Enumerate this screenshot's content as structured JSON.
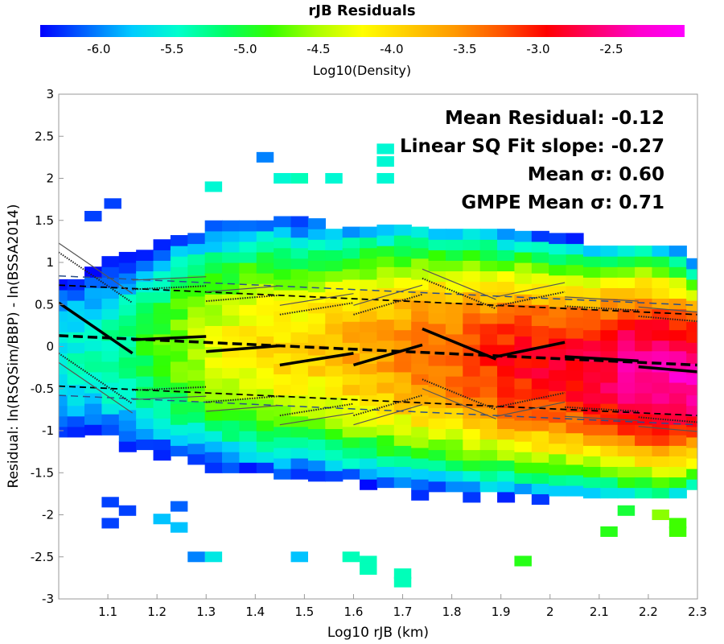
{
  "colorbar": {
    "title": "rJB Residuals",
    "label": "Log10(Density)",
    "range": [
      -6.4,
      -2.0
    ],
    "ticks": [
      "-6.0",
      "-5.5",
      "-5.0",
      "-4.5",
      "-4.0",
      "-3.5",
      "-3.0",
      "-2.5"
    ],
    "tick_values": [
      -6.0,
      -5.5,
      -5.0,
      -4.5,
      -4.0,
      -3.5,
      -3.0,
      -2.5
    ],
    "gradient_colors": [
      "#0000ff",
      "#0066ff",
      "#00ccff",
      "#00ffcc",
      "#00ff66",
      "#33ff00",
      "#aaff00",
      "#ffff00",
      "#ffcc00",
      "#ff9900",
      "#ff5500",
      "#ff0000",
      "#ff0066",
      "#ff00cc",
      "#ff00ff"
    ]
  },
  "annotations": [
    "Mean Residual: -0.12",
    "Linear SQ Fit slope: -0.27",
    "Mean σ: 0.60",
    "GMPE Mean σ: 0.71"
  ],
  "chart_data": {
    "type": "heatmap",
    "title": "rJB Residuals",
    "xlabel": "Log10 rJB (km)",
    "ylabel": "Residual: ln(RSQSim/BBP) - ln(BSSA2014)",
    "xlim": [
      1.0,
      2.3
    ],
    "ylim": [
      -3,
      3
    ],
    "xticks": [
      "1.1",
      "1.2",
      "1.3",
      "1.4",
      "1.5",
      "1.6",
      "1.7",
      "1.8",
      "1.9",
      "2",
      "2.1",
      "2.2",
      "2.3"
    ],
    "xtick_values": [
      1.1,
      1.2,
      1.3,
      1.4,
      1.5,
      1.6,
      1.7,
      1.8,
      1.9,
      2.0,
      2.1,
      2.2,
      2.3
    ],
    "yticks": [
      "3",
      "2.5",
      "2",
      "1.5",
      "1",
      "0.5",
      "0",
      "-0.5",
      "-1",
      "-1.5",
      "-2",
      "-2.5",
      "-3"
    ],
    "ytick_values": [
      3,
      2.5,
      2,
      1.5,
      1,
      0.5,
      0,
      -0.5,
      -1,
      -1.5,
      -2,
      -2.5,
      -3
    ],
    "grid": false,
    "mean_residual": -0.12,
    "linear_fit_slope": -0.27,
    "mean_sigma": 0.6,
    "gmpe_mean_sigma": 0.71,
    "fit_line": {
      "x": [
        1.0,
        2.3
      ],
      "y": [
        0.13,
        -0.22
      ]
    },
    "sigma_band_upper": {
      "x": [
        1.0,
        2.3
      ],
      "y": [
        0.73,
        0.38
      ]
    },
    "sigma_band_lower": {
      "x": [
        1.0,
        2.3
      ],
      "y": [
        -0.47,
        -0.82
      ]
    },
    "gmpe_band_upper": {
      "x": [
        1.0,
        2.3
      ],
      "y": [
        0.84,
        0.49
      ]
    },
    "gmpe_band_lower": {
      "x": [
        1.0,
        2.3
      ],
      "y": [
        -0.58,
        -0.93
      ]
    },
    "bin_segments": [
      {
        "x": [
          1.0,
          1.15
        ],
        "y": [
          0.52,
          -0.08
        ]
      },
      {
        "x": [
          1.15,
          1.3
        ],
        "y": [
          0.08,
          0.12
        ]
      },
      {
        "x": [
          1.3,
          1.45
        ],
        "y": [
          -0.06,
          0.01
        ]
      },
      {
        "x": [
          1.45,
          1.6
        ],
        "y": [
          -0.22,
          -0.08
        ]
      },
      {
        "x": [
          1.6,
          1.74
        ],
        "y": [
          -0.22,
          0.02
        ]
      },
      {
        "x": [
          1.74,
          1.89
        ],
        "y": [
          0.21,
          -0.15
        ]
      },
      {
        "x": [
          1.89,
          2.03
        ],
        "y": [
          -0.12,
          0.05
        ]
      },
      {
        "x": [
          2.03,
          2.18
        ],
        "y": [
          -0.12,
          -0.17
        ]
      },
      {
        "x": [
          2.18,
          2.3
        ],
        "y": [
          -0.24,
          -0.3
        ]
      }
    ],
    "density": {
      "x_center": [
        1.0,
        1.035,
        1.07,
        1.105,
        1.14,
        1.175,
        1.21,
        1.245,
        1.28,
        1.315,
        1.35,
        1.385,
        1.42,
        1.455,
        1.49,
        1.525,
        1.56,
        1.595,
        1.63,
        1.665,
        1.7,
        1.735,
        1.77,
        1.805,
        1.84,
        1.875,
        1.91,
        1.945,
        1.98,
        2.015,
        2.05,
        2.085,
        2.12,
        2.155,
        2.19,
        2.225,
        2.26,
        2.295
      ],
      "mean_log10": [
        -5.6,
        -5.5,
        -5.4,
        -5.3,
        -5.2,
        -5.0,
        -4.8,
        -4.6,
        -4.45,
        -4.3,
        -4.2,
        -4.1,
        -4.05,
        -4.0,
        -3.95,
        -3.9,
        -3.8,
        -3.7,
        -3.65,
        -3.6,
        -3.5,
        -3.4,
        -3.35,
        -3.3,
        -3.2,
        -3.1,
        -3.0,
        -2.95,
        -2.9,
        -2.85,
        -2.8,
        -2.75,
        -2.65,
        -2.55,
        -2.45,
        -2.4,
        -2.4,
        -2.45
      ],
      "y_center": [
        -0.12,
        -0.12,
        -0.1,
        -0.08,
        -0.06,
        -0.04,
        -0.02,
        0.0,
        0.02,
        0.02,
        0.02,
        0.02,
        0.02,
        0.0,
        0.0,
        0.0,
        -0.02,
        -0.04,
        -0.05,
        -0.06,
        -0.07,
        -0.08,
        -0.1,
        -0.12,
        -0.14,
        -0.16,
        -0.18,
        -0.2,
        -0.22,
        -0.24,
        -0.26,
        -0.28,
        -0.3,
        -0.3,
        -0.32,
        -0.34,
        -0.36,
        -0.38
      ],
      "y_min": [
        -1.7,
        -1.7,
        -1.8,
        -1.8,
        -2.0,
        -1.6,
        -1.6,
        -1.8,
        -1.9,
        -2.0,
        -2.0,
        -2.0,
        -2.0,
        -2.2,
        -2.2,
        -2.1,
        -2.1,
        -2.2,
        -2.2,
        -2.3,
        -2.3,
        -2.2,
        -2.1,
        -2.1,
        -2.1,
        -2.1,
        -2.1,
        -2.0,
        -2.0,
        -1.9,
        -1.9,
        -1.8,
        -1.8,
        -1.8,
        -1.8,
        -1.8,
        -1.8,
        -1.7
      ],
      "y_max": [
        1.4,
        1.5,
        1.7,
        1.6,
        1.1,
        1.3,
        1.4,
        1.5,
        1.5,
        1.6,
        1.4,
        1.5,
        1.5,
        1.6,
        1.5,
        1.5,
        1.4,
        1.4,
        1.4,
        1.4,
        1.4,
        1.4,
        1.4,
        1.4,
        1.4,
        1.4,
        1.4,
        1.3,
        1.3,
        1.3,
        1.3,
        1.2,
        1.2,
        1.2,
        1.2,
        1.1,
        1.1,
        1.1
      ],
      "spread": [
        0.75,
        0.75,
        0.75,
        0.75,
        0.75,
        0.75,
        0.75,
        0.75,
        0.75,
        0.75,
        0.75,
        0.75,
        0.75,
        0.75,
        0.72,
        0.72,
        0.72,
        0.72,
        0.72,
        0.72,
        0.72,
        0.72,
        0.7,
        0.7,
        0.7,
        0.68,
        0.66,
        0.65,
        0.64,
        0.63,
        0.62,
        0.62,
        0.62,
        0.62,
        0.62,
        0.6,
        0.58,
        0.55
      ]
    },
    "outlier_bins": [
      {
        "x": 1.11,
        "y": 1.7,
        "log10": -6.2
      },
      {
        "x": 1.07,
        "y": 1.55,
        "log10": -6.2
      },
      {
        "x": 1.105,
        "y": -1.85,
        "log10": -6.2
      },
      {
        "x": 1.105,
        "y": -2.1,
        "log10": -6.2
      },
      {
        "x": 1.14,
        "y": -1.95,
        "log10": -6.2
      },
      {
        "x": 1.21,
        "y": -2.05,
        "log10": -5.8
      },
      {
        "x": 1.245,
        "y": -2.15,
        "log10": -5.8
      },
      {
        "x": 1.315,
        "y": -2.5,
        "log10": -5.6
      },
      {
        "x": 1.28,
        "y": -2.5,
        "log10": -6.0
      },
      {
        "x": 1.245,
        "y": -1.9,
        "log10": -6.1
      },
      {
        "x": 1.42,
        "y": 2.25,
        "log10": -6.0
      },
      {
        "x": 1.455,
        "y": 2.0,
        "log10": -5.5
      },
      {
        "x": 1.49,
        "y": 2.0,
        "log10": -5.4
      },
      {
        "x": 1.56,
        "y": 2.0,
        "log10": -5.5
      },
      {
        "x": 1.665,
        "y": 2.35,
        "log10": -5.5
      },
      {
        "x": 1.665,
        "y": 2.2,
        "log10": -5.5
      },
      {
        "x": 1.665,
        "y": 2.0,
        "log10": -5.5
      },
      {
        "x": 1.315,
        "y": 1.9,
        "log10": -5.5
      },
      {
        "x": 1.595,
        "y": -2.5,
        "log10": -5.4
      },
      {
        "x": 1.63,
        "y": -2.55,
        "log10": -5.4
      },
      {
        "x": 1.63,
        "y": -2.65,
        "log10": -5.4
      },
      {
        "x": 1.7,
        "y": -2.7,
        "log10": -5.4
      },
      {
        "x": 1.7,
        "y": -2.8,
        "log10": -5.4
      },
      {
        "x": 1.49,
        "y": -2.5,
        "log10": -5.8
      },
      {
        "x": 1.945,
        "y": -2.55,
        "log10": -4.9
      },
      {
        "x": 2.155,
        "y": -1.95,
        "log10": -5.0
      },
      {
        "x": 2.225,
        "y": -2.0,
        "log10": -4.6
      },
      {
        "x": 2.26,
        "y": -2.1,
        "log10": -4.8
      },
      {
        "x": 2.26,
        "y": -2.2,
        "log10": -4.8
      },
      {
        "x": 2.12,
        "y": -2.2,
        "log10": -4.9
      }
    ]
  }
}
